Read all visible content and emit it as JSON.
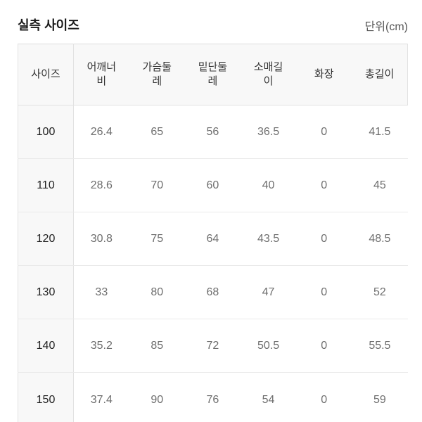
{
  "page": {
    "title": "실측 사이즈",
    "unit_label": "단위(cm)"
  },
  "colors": {
    "title_text": "#1b1b1b",
    "unit_text": "#555555",
    "header_text": "#333333",
    "row_label_text": "#222222",
    "cell_text": "#6e6e6e",
    "shaded_bg": "#f8f8f8",
    "border": "#e2e2e2"
  },
  "table": {
    "columns": [
      "사이즈",
      "어깨너\n비",
      "가슴둘\n레",
      "밑단둘\n레",
      "소매길\n이",
      "화장",
      "총길이"
    ],
    "rows": [
      {
        "size": "100",
        "values": [
          "26.4",
          "65",
          "56",
          "36.5",
          "0",
          "41.5"
        ]
      },
      {
        "size": "110",
        "values": [
          "28.6",
          "70",
          "60",
          "40",
          "0",
          "45"
        ]
      },
      {
        "size": "120",
        "values": [
          "30.8",
          "75",
          "64",
          "43.5",
          "0",
          "48.5"
        ]
      },
      {
        "size": "130",
        "values": [
          "33",
          "80",
          "68",
          "47",
          "0",
          "52"
        ]
      },
      {
        "size": "140",
        "values": [
          "35.2",
          "85",
          "72",
          "50.5",
          "0",
          "55.5"
        ]
      },
      {
        "size": "150",
        "values": [
          "37.4",
          "90",
          "76",
          "54",
          "0",
          "59"
        ]
      }
    ]
  }
}
